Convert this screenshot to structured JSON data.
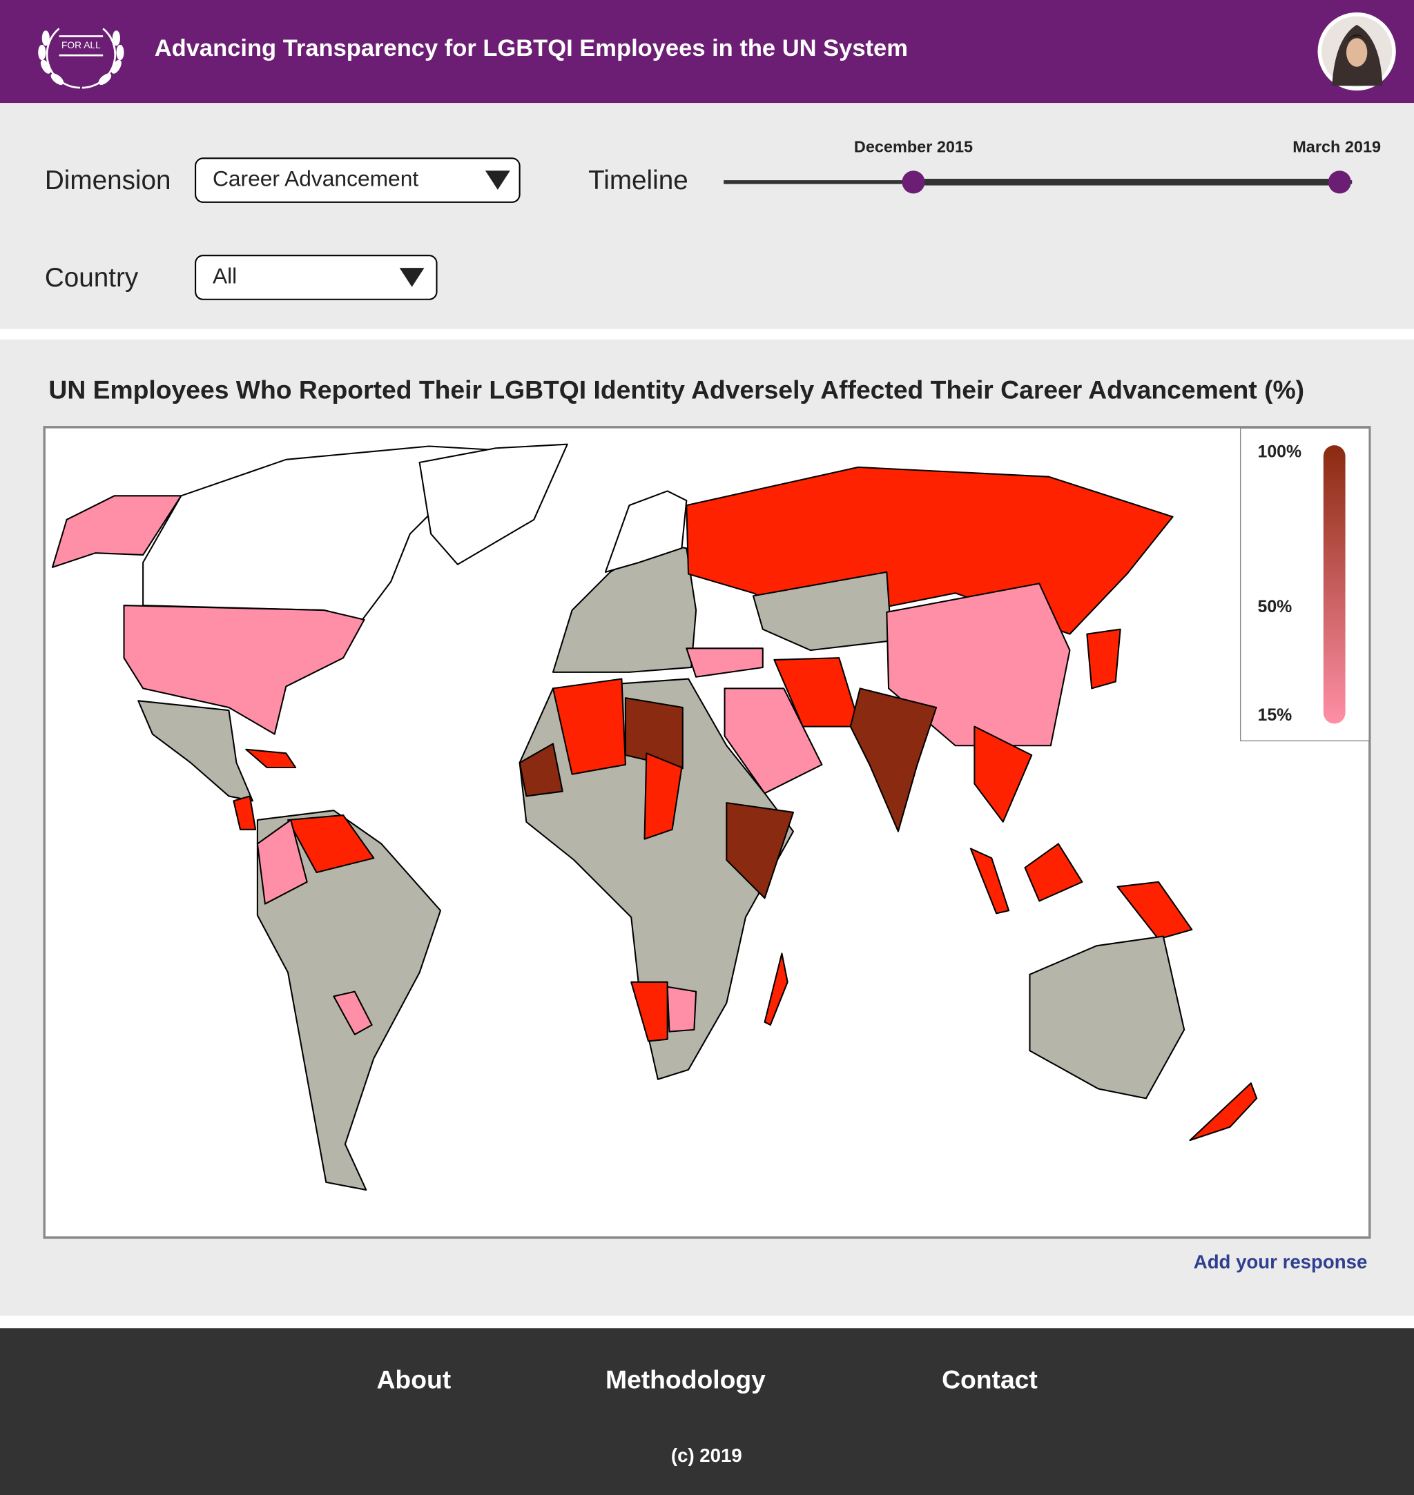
{
  "header": {
    "logo_text": "FOR ALL",
    "title": "Advancing Transparency for LGBTQI Employees in the UN System"
  },
  "filters": {
    "dimension_label": "Dimension",
    "dimension_value": "Career Advancement",
    "timeline_label": "Timeline",
    "timeline_start": "December 2015",
    "timeline_end": "March 2019",
    "country_label": "Country",
    "country_value": "All"
  },
  "map": {
    "title": "UN Employees Who Reported Their LGBTQI Identity Adversely Affected Their Career Advancement (%)",
    "legend": {
      "range": [
        15,
        100
      ],
      "colors": [
        "#ff8fa6",
        "#8a2a10"
      ],
      "ticks": [
        {
          "value": 100,
          "label": "100%"
        },
        {
          "value": 50,
          "label": "50%"
        },
        {
          "value": 15,
          "label": "15%"
        }
      ]
    }
  },
  "link": "Add your response",
  "footer": {
    "links": [
      "About",
      "Methodology",
      "Contact"
    ],
    "copyright": "(c) 2019"
  }
}
